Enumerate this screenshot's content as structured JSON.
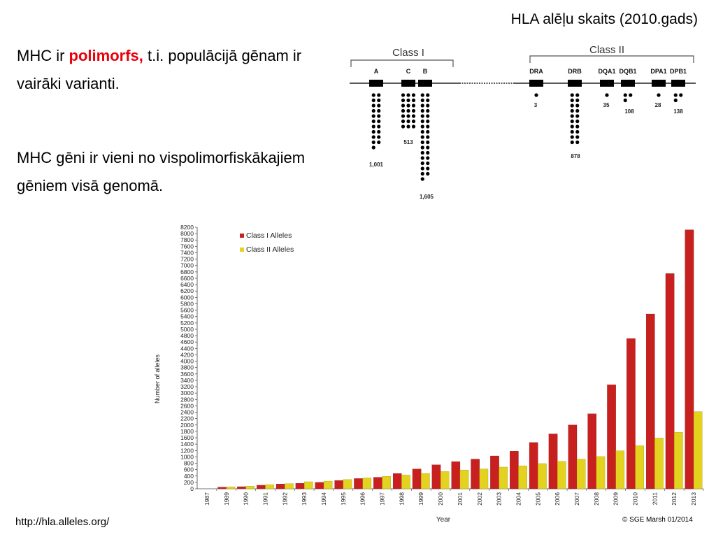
{
  "slide": {
    "top_caption": "HLA alēļu skaits (2010.gads)",
    "para1_prefix": "MHC ir ",
    "para1_highlight": "polimorfs,",
    "para1_suffix": " t.i. populācijā gēnam ir vairāki varianti.",
    "para2": "MHC gēni ir vieni no vispolimorfiskākajiem gēniem visā genomā.",
    "source": "http://hla.alleles.org/",
    "highlight_color": "#e8000b"
  },
  "gene_map": {
    "class1_label": "Class I",
    "class2_label": "Class II",
    "genes": [
      {
        "name": "A",
        "count": "1,001"
      },
      {
        "name": "C",
        "count": "513"
      },
      {
        "name": "B",
        "count": "1,605"
      },
      {
        "name": "DRA",
        "count": "3"
      },
      {
        "name": "DRB",
        "count": "878"
      },
      {
        "name": "DQA1",
        "count": "35"
      },
      {
        "name": "DQB1",
        "count": "108"
      },
      {
        "name": "DPA1",
        "count": "28"
      },
      {
        "name": "DPB1",
        "count": "138"
      }
    ]
  },
  "chart_data": {
    "type": "bar",
    "title": "",
    "xlabel": "Year",
    "ylabel": "Number of alleles",
    "ylim": [
      0,
      8200
    ],
    "ytick_step": 200,
    "legend_position": "top-left",
    "copyright": "© SGE Marsh 01/2014",
    "categories": [
      "1987",
      "1989",
      "1990",
      "1991",
      "1992",
      "1993",
      "1994",
      "1995",
      "1996",
      "1997",
      "1998",
      "1999",
      "2000",
      "2001",
      "2002",
      "2003",
      "2004",
      "2005",
      "2006",
      "2007",
      "2008",
      "2009",
      "2010",
      "2011",
      "2012",
      "2013"
    ],
    "series": [
      {
        "name": "Class I Alleles",
        "color": "#c8201f",
        "values": [
          0,
          50,
          65,
          110,
          150,
          170,
          200,
          260,
          320,
          360,
          480,
          620,
          750,
          850,
          930,
          1030,
          1180,
          1450,
          1720,
          2000,
          2350,
          3260,
          4710,
          5480,
          6750,
          8120
        ]
      },
      {
        "name": "Class II Alleles",
        "color": "#e3d21f",
        "values": [
          0,
          60,
          85,
          130,
          160,
          220,
          240,
          290,
          340,
          390,
          430,
          480,
          540,
          590,
          620,
          680,
          720,
          790,
          860,
          930,
          1010,
          1190,
          1350,
          1590,
          1770,
          2420
        ]
      }
    ]
  }
}
